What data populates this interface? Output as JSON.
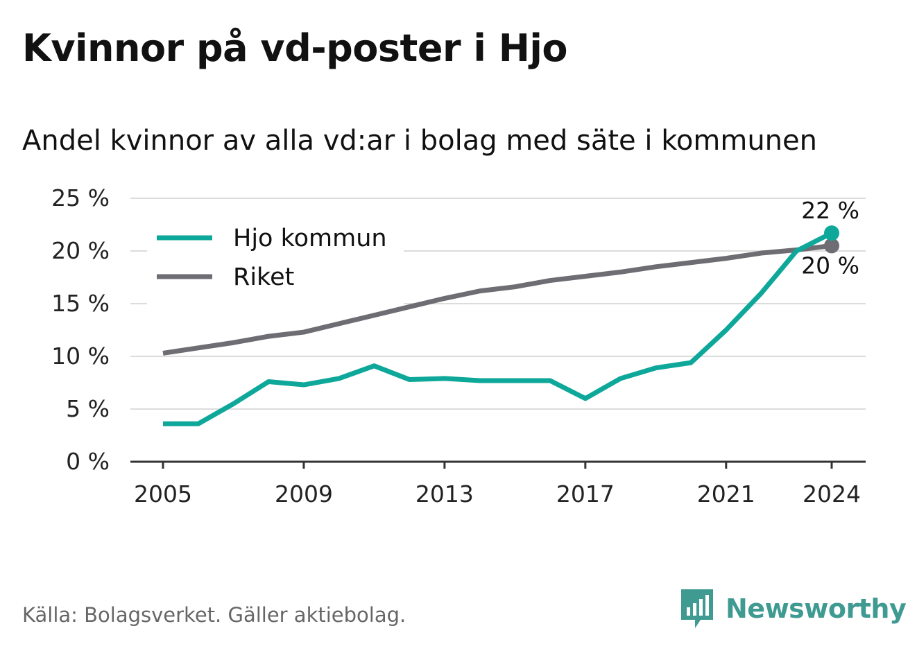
{
  "title": "Kvinnor på vd-poster i Hjo",
  "subtitle": "Andel kvinnor av alla vd:ar i bolag med säte i kommunen",
  "source": "Källa: Bolagsverket. Gäller aktiebolag.",
  "brand": {
    "name": "Newsworthy",
    "icon": "newsworthy-logo-icon",
    "color": "#3f9a92"
  },
  "chart_data": {
    "type": "line",
    "x": [
      2005,
      2006,
      2007,
      2008,
      2009,
      2010,
      2011,
      2012,
      2013,
      2014,
      2015,
      2016,
      2017,
      2018,
      2019,
      2020,
      2021,
      2022,
      2023,
      2024
    ],
    "x_ticks": [
      2005,
      2009,
      2013,
      2017,
      2021,
      2024
    ],
    "x_tick_labels": [
      "2005",
      "2009",
      "2013",
      "2017",
      "2021",
      "2024"
    ],
    "ylim": [
      0,
      25
    ],
    "y_ticks": [
      0,
      5,
      10,
      15,
      20,
      25
    ],
    "y_tick_labels": [
      "0 %",
      "5 %",
      "10 %",
      "15 %",
      "20 %",
      "25 %"
    ],
    "grid": true,
    "legend": "top-left",
    "series": [
      {
        "name": "Hjo kommun",
        "color": "#0ea89a",
        "values": [
          3.6,
          3.6,
          5.5,
          7.6,
          7.3,
          7.9,
          9.1,
          7.8,
          7.9,
          7.7,
          7.7,
          7.7,
          6.0,
          7.9,
          8.9,
          9.4,
          12.5,
          16.0,
          20.0,
          21.7
        ],
        "end_label": "22 %"
      },
      {
        "name": "Riket",
        "color": "#6e6d74",
        "values": [
          10.3,
          10.8,
          11.3,
          11.9,
          12.3,
          13.1,
          13.9,
          14.7,
          15.5,
          16.2,
          16.6,
          17.2,
          17.6,
          18.0,
          18.5,
          18.9,
          19.3,
          19.8,
          20.1,
          20.5
        ],
        "end_label": "20 %"
      }
    ]
  }
}
